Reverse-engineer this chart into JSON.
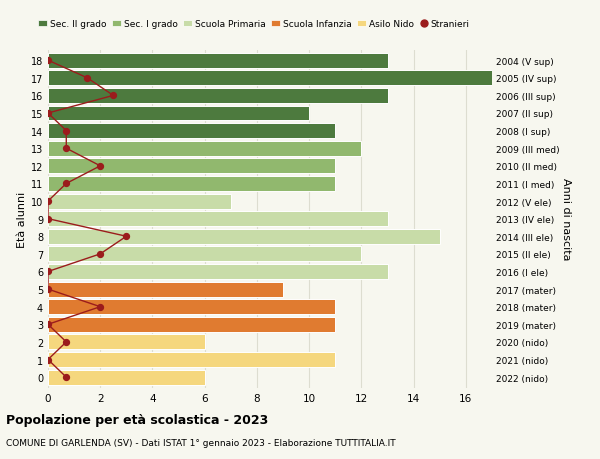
{
  "ages": [
    0,
    1,
    2,
    3,
    4,
    5,
    6,
    7,
    8,
    9,
    10,
    11,
    12,
    13,
    14,
    15,
    16,
    17,
    18
  ],
  "years_labels": [
    "2022 (nido)",
    "2021 (nido)",
    "2020 (nido)",
    "2019 (mater)",
    "2018 (mater)",
    "2017 (mater)",
    "2016 (I ele)",
    "2015 (II ele)",
    "2014 (III ele)",
    "2013 (IV ele)",
    "2012 (V ele)",
    "2011 (I med)",
    "2010 (II med)",
    "2009 (III med)",
    "2008 (I sup)",
    "2007 (II sup)",
    "2006 (III sup)",
    "2005 (IV sup)",
    "2004 (V sup)"
  ],
  "bar_values": [
    6,
    11,
    6,
    11,
    11,
    9,
    13,
    12,
    15,
    13,
    7,
    11,
    11,
    12,
    11,
    10,
    13,
    17,
    13
  ],
  "bar_colors": [
    "#f5d77e",
    "#f5d77e",
    "#f5d77e",
    "#e07b30",
    "#e07b30",
    "#e07b30",
    "#c8dca8",
    "#c8dca8",
    "#c8dca8",
    "#c8dca8",
    "#c8dca8",
    "#91b86e",
    "#91b86e",
    "#91b86e",
    "#4d7a3e",
    "#4d7a3e",
    "#4d7a3e",
    "#4d7a3e",
    "#4d7a3e"
  ],
  "stranieri_values": [
    0.7,
    0,
    0.7,
    0,
    2,
    0,
    0,
    2,
    3,
    0,
    0,
    0.7,
    2,
    0.7,
    0.7,
    0,
    2.5,
    1.5,
    0
  ],
  "xlim": [
    0,
    17
  ],
  "ylabel": "Età alunni",
  "right_label": "Anni di nascita",
  "title": "Popolazione per età scolastica - 2023",
  "subtitle": "COMUNE DI GARLENDA (SV) - Dati ISTAT 1° gennaio 2023 - Elaborazione TUTTITALIA.IT",
  "legend_labels": [
    "Sec. II grado",
    "Sec. I grado",
    "Scuola Primaria",
    "Scuola Infanzia",
    "Asilo Nido",
    "Stranieri"
  ],
  "legend_colors": [
    "#4d7a3e",
    "#91b86e",
    "#c8dca8",
    "#e07b30",
    "#f5d77e",
    "#9b1c1c"
  ],
  "bg_color": "#f7f7ef",
  "grid_color": "#ddddd0"
}
